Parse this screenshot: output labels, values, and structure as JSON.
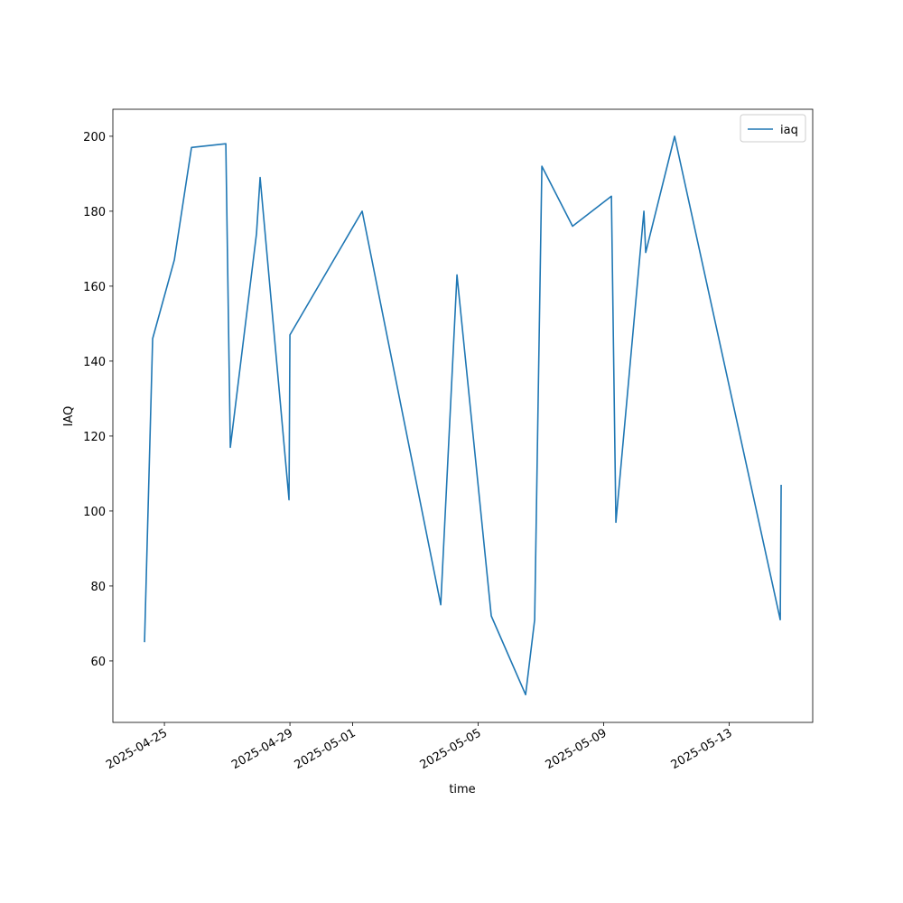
{
  "chart_data": {
    "type": "line",
    "x_label": "time",
    "y_label": "IAQ",
    "x": [
      "2025-04-24 08:48",
      "2025-04-24 15:00",
      "2025-04-25 07:36",
      "2025-04-25 20:43",
      "2025-04-26 22:58",
      "2025-04-27 02:25",
      "2025-04-27 22:26",
      "2025-04-28 01:12",
      "2025-04-28 23:18",
      "2025-04-29 00:00",
      "2025-05-01 07:15",
      "2025-05-03 19:21",
      "2025-05-04 07:46",
      "2025-05-05 10:00",
      "2025-05-06 12:16",
      "2025-05-06 19:11",
      "2025-05-07 00:42",
      "2025-05-08 00:10",
      "2025-05-09 05:53",
      "2025-05-09 09:19",
      "2025-05-10 06:44",
      "2025-05-10 08:07",
      "2025-05-11 06:13",
      "2025-05-14 15:01",
      "2025-05-14 15:43"
    ],
    "series": [
      {
        "name": "iaq",
        "color": "#1f77b4",
        "values": [
          65,
          146,
          167,
          197,
          198,
          117,
          174,
          189,
          103,
          147,
          180,
          75,
          163,
          72,
          51,
          71,
          192,
          176,
          184,
          97,
          180,
          169,
          200,
          71,
          107
        ]
      }
    ],
    "xlim": [
      "2025-04-23 08:35",
      "2025-05-15 15:50"
    ],
    "xticks": [
      "2025-04-25",
      "2025-04-29",
      "2025-05-01",
      "2025-05-05",
      "2025-05-09",
      "2025-05-13"
    ],
    "ylim": [
      43.6,
      207.2
    ],
    "yticks": [
      60,
      80,
      100,
      120,
      140,
      160,
      180,
      200
    ],
    "legend": "upper right",
    "grid": false
  }
}
